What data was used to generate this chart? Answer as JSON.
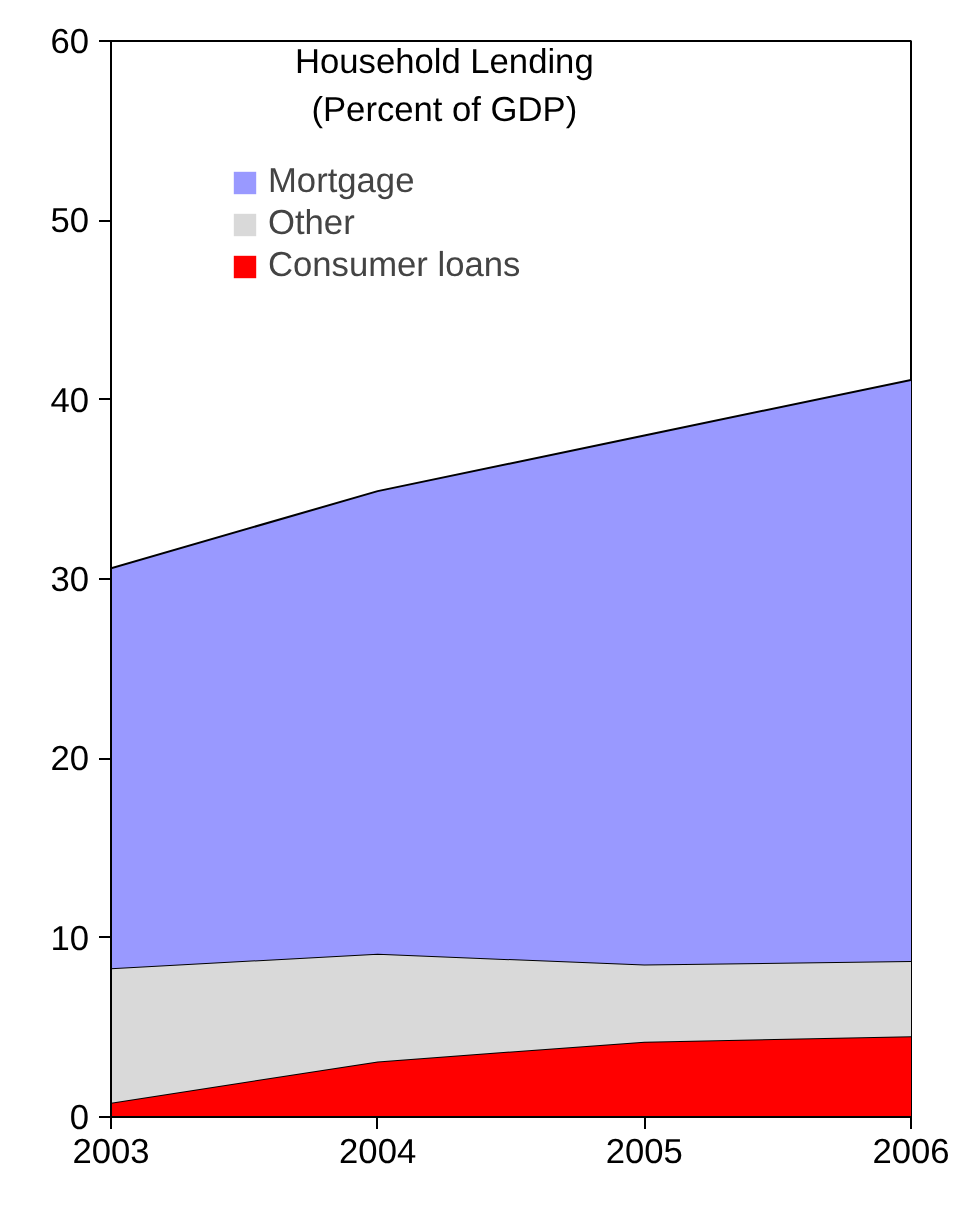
{
  "chart_data": {
    "type": "area",
    "stacked": true,
    "title": "Household Lending",
    "subtitle": "(Percent of GDP)",
    "x": [
      2003,
      2004,
      2005,
      2006
    ],
    "xlim": [
      2003,
      2006
    ],
    "xticks": [
      2003,
      2004,
      2005,
      2006
    ],
    "ylim": [
      0,
      60
    ],
    "yticks": [
      0,
      10,
      20,
      30,
      40,
      50,
      60
    ],
    "grid": false,
    "legend": "top left",
    "series": [
      {
        "name": "Consumer loans",
        "color": "#ff0000",
        "values": [
          0.8,
          3.1,
          4.2,
          4.5
        ]
      },
      {
        "name": "Other",
        "color": "#d9d9d9",
        "values": [
          7.5,
          6.0,
          4.3,
          4.2
        ]
      },
      {
        "name": "Mortgage",
        "color": "#9999ff",
        "values": [
          22.3,
          25.8,
          29.5,
          32.4
        ]
      }
    ]
  }
}
